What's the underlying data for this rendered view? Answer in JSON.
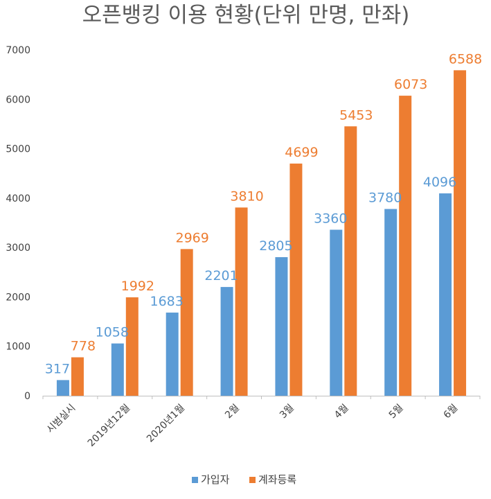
{
  "chart_data": {
    "type": "bar",
    "title": "오픈뱅킹 이용 현황(단위 만명, 만좌)",
    "categories": [
      "시범실시",
      "2019년12월",
      "2020년1월",
      "2월",
      "3월",
      "4월",
      "5월",
      "6월"
    ],
    "series": [
      {
        "name": "가입자",
        "values": [
          317,
          1058,
          1683,
          2201,
          2805,
          3360,
          3780,
          4096
        ],
        "color": "#5b9bd5"
      },
      {
        "name": "계좌등록",
        "values": [
          778,
          1992,
          2969,
          3810,
          4699,
          5453,
          6073,
          6588
        ],
        "color": "#ed7d31"
      }
    ],
    "ylim": [
      0,
      7000
    ],
    "yticks": [
      0,
      1000,
      2000,
      3000,
      4000,
      5000,
      6000,
      7000
    ],
    "grid": false,
    "legend_position": "bottom",
    "data_labels": true
  }
}
